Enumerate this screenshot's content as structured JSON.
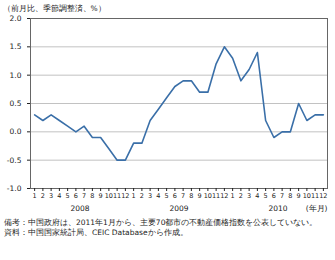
{
  "chart_data": {
    "type": "line",
    "ylabel": "（前月比、季節調整済、%）",
    "xlabel": "(年月)",
    "categories": [
      "1",
      "2",
      "3",
      "4",
      "5",
      "6",
      "7",
      "8",
      "9",
      "10",
      "11",
      "12",
      "1",
      "2",
      "3",
      "4",
      "5",
      "6",
      "7",
      "8",
      "9",
      "10",
      "11",
      "12",
      "1",
      "2",
      "3",
      "4",
      "5",
      "6",
      "7",
      "8",
      "9",
      "10",
      "11",
      "12"
    ],
    "groups": [
      "2008",
      "2009",
      "2010"
    ],
    "values": [
      0.3,
      0.2,
      0.3,
      0.2,
      0.1,
      0.0,
      0.1,
      -0.1,
      -0.1,
      -0.3,
      -0.5,
      -0.5,
      -0.2,
      -0.2,
      0.2,
      0.4,
      0.6,
      0.8,
      0.9,
      0.9,
      0.7,
      0.7,
      1.2,
      1.5,
      1.3,
      0.9,
      1.1,
      1.4,
      0.2,
      -0.1,
      0.0,
      0.0,
      0.5,
      0.2,
      0.3,
      0.3
    ],
    "color": "#3a6fa8",
    "ylim": [
      -1,
      2
    ],
    "yticks": [
      {
        "value": -1,
        "label": "-1.0"
      },
      -0.5,
      {
        "value": 0,
        "label": "0.0"
      },
      0.5,
      {
        "value": 1,
        "label": "1.0"
      },
      1.5,
      {
        "value": 2,
        "label": "2.0"
      }
    ],
    "grid": true,
    "notes": [
      "備考：中国政府は、2011年1月から、主要70都市の不動産価格指数を公表していない。",
      "資料：中国国家統計局、CEIC Databaseから作成。"
    ]
  }
}
